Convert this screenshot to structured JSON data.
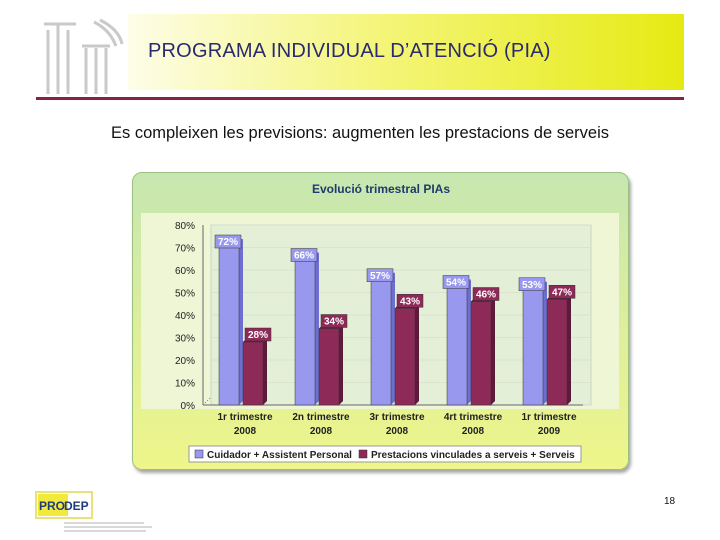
{
  "header": {
    "title": "PROGRAMA INDIVIDUAL D’ATENCIÓ (PIA)"
  },
  "subtitle": "Es compleixen les previsions: augmenten les prestacions de serveis",
  "logo": {
    "icon": "institution-emblem-icon"
  },
  "footer": {
    "logo_text_a": "PRO",
    "logo_text_b": "DEP",
    "page_number": "18"
  },
  "colors": {
    "series1": "#9898ee",
    "series2": "#8e2a58",
    "accent": "#8a1f4a"
  },
  "chart_data": {
    "type": "bar",
    "title": "Evolució trimestral PIAs",
    "categories": [
      [
        "1r trimestre",
        "2008"
      ],
      [
        "2n trimestre",
        "2008"
      ],
      [
        "3r trimestre",
        "2008"
      ],
      [
        "4rt trimestre",
        "2008"
      ],
      [
        "1r trimestre",
        "2009"
      ]
    ],
    "series": [
      {
        "name": "Cuidador + Assistent Personal",
        "values": [
          72,
          66,
          57,
          54,
          53
        ],
        "labels": [
          "72%",
          "66%",
          "57%",
          "54%",
          "53%"
        ]
      },
      {
        "name": "Prestacions vinculades a serveis + Serveis",
        "values": [
          28,
          34,
          43,
          46,
          47
        ],
        "labels": [
          "28%",
          "34%",
          "43%",
          "46%",
          "47%"
        ]
      }
    ],
    "y_ticks": [
      "0%",
      "10%",
      "20%",
      "30%",
      "40%",
      "50%",
      "60%",
      "70%",
      "80%"
    ],
    "ylim": [
      0,
      80
    ],
    "legend_position": "bottom"
  }
}
